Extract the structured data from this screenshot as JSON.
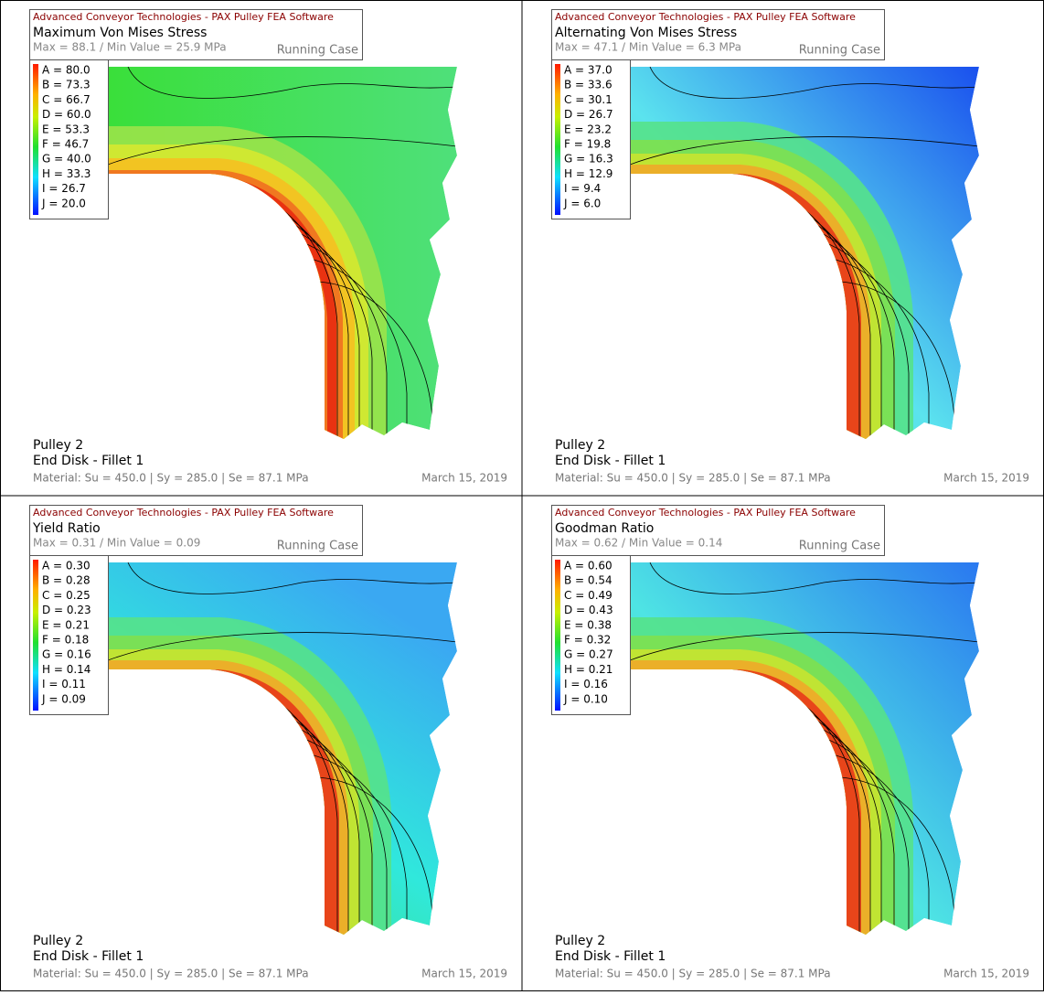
{
  "panels": [
    {
      "header": {
        "company": "Advanced Conveyor Technologies - PAX Pulley FEA Software",
        "title": "Maximum Von Mises Stress",
        "range": "Max = 88.1 / Min Value = 25.9 MPa",
        "case": "Running Case"
      },
      "legend": [
        "A = 80.0",
        "B = 73.3",
        "C = 66.7",
        "D = 60.0",
        "E = 53.3",
        "F = 46.7",
        "G = 40.0",
        "H = 33.3",
        "I = 26.7",
        "J = 20.0"
      ],
      "footer": {
        "pulley": "Pulley 2",
        "component": "End Disk - Fillet 1",
        "material": "Material: Su = 450.0 | Sy = 285.0 | Se = 87.1 MPa",
        "date": "March 15, 2019"
      }
    },
    {
      "header": {
        "company": "Advanced Conveyor Technologies - PAX Pulley FEA Software",
        "title": "Alternating Von Mises Stress",
        "range": "Max = 47.1 / Min Value = 6.3 MPa",
        "case": "Running Case"
      },
      "legend": [
        "A = 37.0",
        "B = 33.6",
        "C = 30.1",
        "D = 26.7",
        "E = 23.2",
        "F = 19.8",
        "G = 16.3",
        "H = 12.9",
        "I = 9.4",
        "J = 6.0"
      ],
      "footer": {
        "pulley": "Pulley 2",
        "component": "End Disk - Fillet 1",
        "material": "Material: Su = 450.0 | Sy = 285.0 | Se = 87.1 MPa",
        "date": "March 15, 2019"
      }
    },
    {
      "header": {
        "company": "Advanced Conveyor Technologies - PAX Pulley FEA Software",
        "title": "Yield Ratio",
        "range": "Max = 0.31 / Min Value = 0.09",
        "case": "Running Case"
      },
      "legend": [
        "A = 0.30",
        "B = 0.28",
        "C = 0.25",
        "D = 0.23",
        "E = 0.21",
        "F = 0.18",
        "G = 0.16",
        "H = 0.14",
        "I = 0.11",
        "J = 0.09"
      ],
      "footer": {
        "pulley": "Pulley 2",
        "component": "End Disk - Fillet 1",
        "material": "Material: Su = 450.0 | Sy = 285.0 | Se = 87.1 MPa",
        "date": "March 15, 2019"
      }
    },
    {
      "header": {
        "company": "Advanced Conveyor Technologies - PAX Pulley FEA Software",
        "title": "Goodman Ratio",
        "range": "Max = 0.62 / Min Value = 0.14",
        "case": "Running Case"
      },
      "legend": [
        "A = 0.60",
        "B = 0.54",
        "C = 0.49",
        "D = 0.43",
        "E = 0.38",
        "F = 0.32",
        "G = 0.27",
        "H = 0.21",
        "I = 0.16",
        "J = 0.10"
      ],
      "footer": {
        "pulley": "Pulley 2",
        "component": "End Disk - Fillet 1",
        "material": "Material: Su = 450.0 | Sy = 285.0 | Se = 87.1 MPa",
        "date": "March 15, 2019"
      }
    }
  ]
}
